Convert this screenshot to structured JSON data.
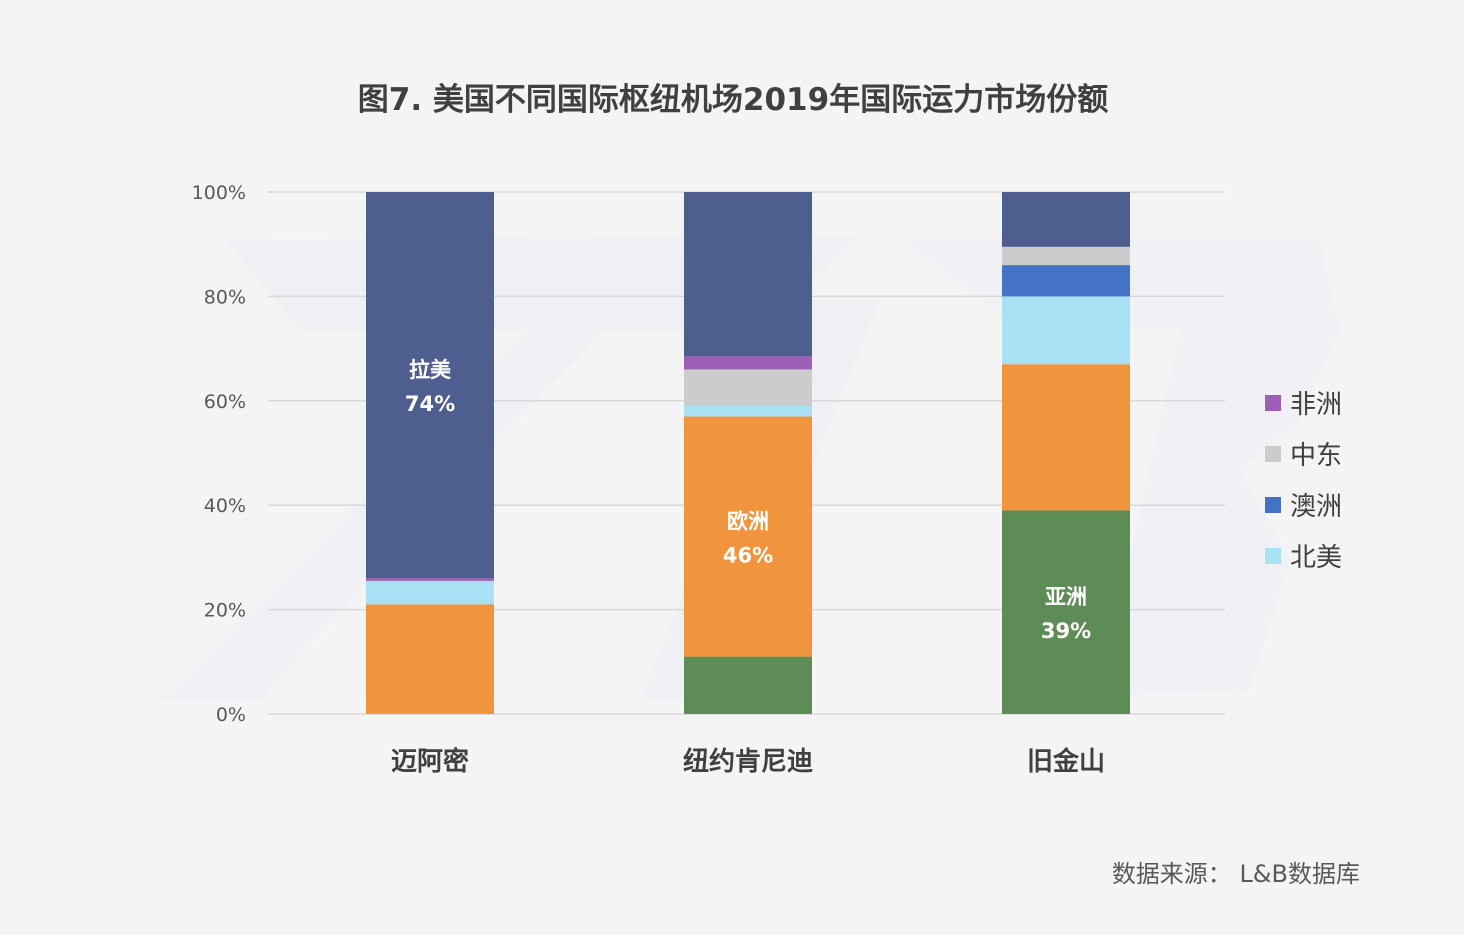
{
  "chart_data": {
    "type": "bar",
    "stacked": true,
    "title": "图7. 美国不同国际枢纽机场2019年国际运力市场份额",
    "categories": [
      "迈阿密",
      "纽约肯尼迪",
      "旧金山"
    ],
    "y_ticks": [
      "0%",
      "20%",
      "40%",
      "60%",
      "80%",
      "100%"
    ],
    "ylim": [
      0,
      100
    ],
    "grid": true,
    "legend_position": "right",
    "series": [
      {
        "key": "asia",
        "name": "亚洲",
        "color": "#5e8c57",
        "values": [
          0,
          11,
          39
        ]
      },
      {
        "key": "europe",
        "name": "欧洲",
        "color": "#f0943d",
        "values": [
          21,
          46,
          28
        ]
      },
      {
        "key": "north_america",
        "name": "北美",
        "color": "#a8e2f4",
        "values": [
          4.5,
          2,
          13
        ]
      },
      {
        "key": "oceania",
        "name": "澳洲",
        "color": "#4472c4",
        "values": [
          0,
          0,
          6
        ]
      },
      {
        "key": "middle_east",
        "name": "中东",
        "color": "#cccccc",
        "values": [
          0,
          7,
          3.5
        ]
      },
      {
        "key": "africa",
        "name": "非洲",
        "color": "#9e5fb8",
        "values": [
          0.5,
          2.5,
          0
        ]
      },
      {
        "key": "latin_america",
        "name": "拉美",
        "color": "#4e5e8f",
        "values": [
          74,
          31.5,
          10.5
        ]
      }
    ],
    "legend": [
      {
        "name": "非洲",
        "color": "#9e5fb8"
      },
      {
        "name": "中东",
        "color": "#cccccc"
      },
      {
        "name": "澳洲",
        "color": "#4472c4"
      },
      {
        "name": "北美",
        "color": "#a8e2f4"
      }
    ],
    "annotations": [
      {
        "category_index": 0,
        "series_key": "latin_america",
        "label": "拉美",
        "value_label": "74%"
      },
      {
        "category_index": 1,
        "series_key": "europe",
        "label": "欧洲",
        "value_label": "46%"
      },
      {
        "category_index": 2,
        "series_key": "asia",
        "label": "亚洲",
        "value_label": "39%"
      }
    ]
  },
  "source": "数据来源：  L&B数据库"
}
